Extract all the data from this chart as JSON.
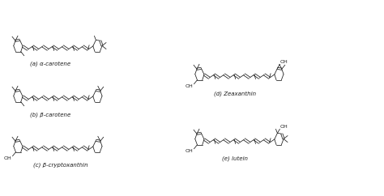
{
  "background_color": "#ffffff",
  "text_color": "#1a1a1a",
  "labels": {
    "a": "(a) α-carotene",
    "b": "(b) β-carotene",
    "c": "(c) β-cryptoxanthin",
    "d": "(d) Zeaxanthin",
    "e": "(e) lutein"
  },
  "label_fontsize": 5.0,
  "fig_width": 4.74,
  "fig_height": 2.42,
  "dpi": 100
}
